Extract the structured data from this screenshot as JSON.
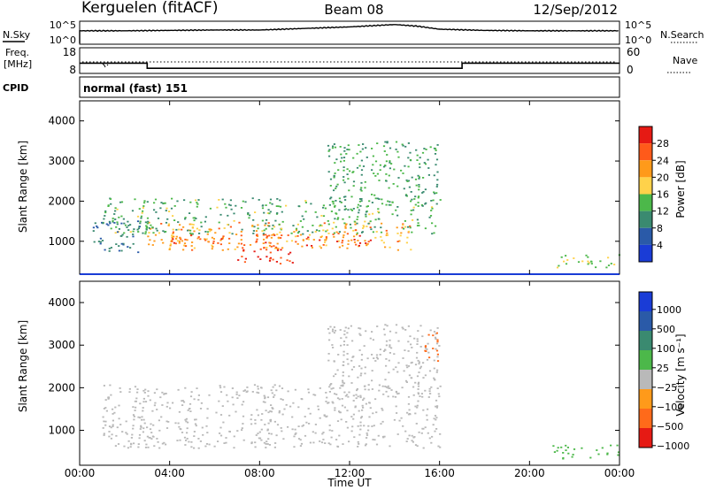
{
  "header": {
    "station": "Kerguelen (fitACF)",
    "beam": "Beam 08",
    "date": "12/Sep/2012"
  },
  "noise_panel": {
    "left_label": "N.Sky",
    "right_label": "N.Search",
    "left_ticks": [
      "10^5",
      "10^0"
    ],
    "right_ticks": [
      "10^5",
      "10^0"
    ]
  },
  "freq_panel": {
    "left_label_line1": "Freq.",
    "left_label_line2": "[MHz]",
    "right_label": "Nave",
    "left_ticks": [
      "18",
      "8"
    ],
    "right_ticks": [
      "60",
      "0"
    ]
  },
  "cpid": {
    "label": "CPID",
    "value": "normal (fast) 151"
  },
  "x_axis": {
    "label": "Time UT",
    "ticks": [
      "00:00",
      "04:00",
      "08:00",
      "12:00",
      "16:00",
      "20:00",
      "00:00"
    ],
    "range_hours": [
      0,
      24
    ]
  },
  "power_panel": {
    "ylabel": "Slant Range [km]",
    "yticks": [
      "1000",
      "2000",
      "3000",
      "4000"
    ],
    "colorbar_label": "Power [dB]",
    "colorbar_ticks": [
      "4",
      "8",
      "12",
      "16",
      "20",
      "24",
      "28"
    ]
  },
  "velocity_panel": {
    "ylabel": "Slant Range [km]",
    "yticks": [
      "1000",
      "2000",
      "3000",
      "4000"
    ],
    "colorbar_label": "Velocity [m s⁻¹]",
    "colorbar_ticks": [
      "1000",
      "500",
      "100",
      "25",
      "−25",
      "−100",
      "−500",
      "−1000"
    ]
  },
  "colors": {
    "power_scale": [
      "#1a3cd6",
      "#2a5aa8",
      "#3a8a70",
      "#4cb84a",
      "#ffd24a",
      "#ff9a1a",
      "#ff5a1a",
      "#e61a14"
    ],
    "velocity_scale": [
      "#1a3cd6",
      "#2a5aa8",
      "#3a8a70",
      "#4cb84a",
      "#b9b9b9",
      "#ff9a1a",
      "#ff6a1a",
      "#e61a14"
    ]
  },
  "chart_data": [
    {
      "type": "line",
      "name": "noise",
      "x": [
        0,
        2,
        4,
        6,
        8,
        10,
        12,
        13,
        14,
        15,
        16,
        18,
        20,
        22,
        24
      ],
      "y": [
        3,
        3,
        3.1,
        3.2,
        3.2,
        3.6,
        4.0,
        4.3,
        4.6,
        4.2,
        3.4,
        3.1,
        3.0,
        3.0,
        3.0
      ],
      "ylim": [
        0,
        5
      ]
    },
    {
      "type": "line",
      "name": "frequency",
      "x": [
        0,
        3,
        3,
        17,
        17,
        24
      ],
      "y": [
        12,
        12,
        10,
        10,
        12,
        12
      ],
      "ylim": [
        8,
        18
      ]
    },
    {
      "type": "heatmap",
      "name": "power",
      "x_range": [
        0,
        24
      ],
      "y_range_km": [
        180,
        4500
      ],
      "clim_db": [
        0,
        30
      ],
      "regions": [
        {
          "t0": 3,
          "t1": 14.7,
          "r0": 800,
          "r1": 1500,
          "level": 22
        },
        {
          "t0": 7,
          "t1": 9.5,
          "r0": 450,
          "r1": 900,
          "level": 28
        },
        {
          "t0": 4,
          "t1": 13,
          "r0": 900,
          "r1": 1200,
          "level": 26
        },
        {
          "t0": 1,
          "t1": 15.8,
          "r0": 1200,
          "r1": 2100,
          "level": 13
        },
        {
          "t0": 11,
          "t1": 16,
          "r0": 1800,
          "r1": 3500,
          "level": 12
        },
        {
          "t0": 0.5,
          "t1": 3,
          "r0": 700,
          "r1": 1600,
          "level": 8
        },
        {
          "t0": 21,
          "t1": 24,
          "r0": 350,
          "r1": 700,
          "level": 16
        }
      ]
    },
    {
      "type": "heatmap",
      "name": "velocity",
      "x_range": [
        0,
        24
      ],
      "y_range_km": [
        180,
        4500
      ],
      "clim_ms": [
        -1000,
        1000
      ],
      "regions": [
        {
          "t0": 1,
          "t1": 16,
          "r0": 600,
          "r1": 2100,
          "level": 0
        },
        {
          "t0": 11,
          "t1": 16,
          "r0": 1800,
          "r1": 3500,
          "level": 0
        },
        {
          "t0": 15.3,
          "t1": 16,
          "r0": 2600,
          "r1": 3400,
          "level": -300
        },
        {
          "t0": 21,
          "t1": 24,
          "r0": 350,
          "r1": 700,
          "level": 60
        }
      ]
    }
  ]
}
